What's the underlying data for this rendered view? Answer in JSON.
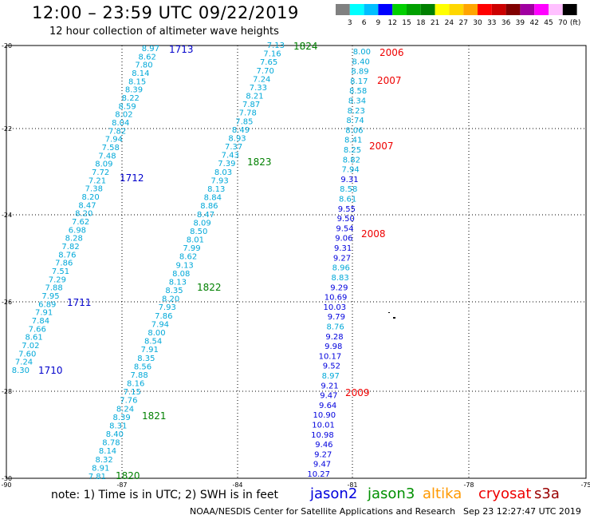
{
  "header": {
    "title": "12:00 – 23:59 UTC 09/22/2019",
    "subtitle": "12 hour collection of altimeter wave heights"
  },
  "legend": {
    "unit": "(ft)",
    "bins": [
      {
        "label": "3",
        "color": "#808080"
      },
      {
        "label": "6",
        "color": "#00ffff"
      },
      {
        "label": "9",
        "color": "#00bfff"
      },
      {
        "label": "12",
        "color": "#0000ff"
      },
      {
        "label": "15",
        "color": "#00d000"
      },
      {
        "label": "18",
        "color": "#00a000"
      },
      {
        "label": "21",
        "color": "#008000"
      },
      {
        "label": "24",
        "color": "#ffff00"
      },
      {
        "label": "27",
        "color": "#ffd700"
      },
      {
        "label": "30",
        "color": "#ffa500"
      },
      {
        "label": "33",
        "color": "#ff0000"
      },
      {
        "label": "36",
        "color": "#cc0000"
      },
      {
        "label": "39",
        "color": "#800000"
      },
      {
        "label": "42",
        "color": "#a000a0"
      },
      {
        "label": "45",
        "color": "#ff00ff"
      },
      {
        "label": "70",
        "color": "#ffc0ff"
      },
      {
        "label": "",
        "color": "#000000"
      }
    ]
  },
  "axes": {
    "lon_labels": [
      "-90",
      "-87",
      "-84",
      "-81",
      "-78",
      "-75"
    ],
    "lat_labels": [
      "-20",
      "-22",
      "-24",
      "-26",
      "-28",
      "-30"
    ]
  },
  "tracks": [
    {
      "name": "track-1710-1713",
      "color": "#00a8d8",
      "values": [
        "8.97",
        "8.62",
        "7.80",
        "8.14",
        "8.15",
        "8.39",
        "8.22",
        "8.59",
        "8.02",
        "8.04",
        "7.82",
        "7.94",
        "7.58",
        "7.48",
        "8.09",
        "7.72",
        "7.21",
        "7.38",
        "8.20",
        "8.47",
        "8.20",
        "7.62",
        "6.98",
        "8.28",
        "7.82",
        "8.76",
        "7.86",
        "7.51",
        "7.29",
        "7.88",
        "7.95",
        "6.89",
        "7.91",
        "7.84",
        "7.66",
        "8.61",
        "7.02",
        "7.60",
        "7.24",
        "8.30"
      ]
    },
    {
      "name": "track-1820-1824",
      "color": "#00a8d8",
      "values": [
        "7.13",
        "7.16",
        "7.65",
        "7.70",
        "7.24",
        "7.33",
        "8.21",
        "7.87",
        "7.78",
        "7.85",
        "8.49",
        "8.93",
        "7.37",
        "7.43",
        "7.39",
        "8.03",
        "7.93",
        "8.13",
        "8.84",
        "8.86",
        "8.47",
        "8.09",
        "8.50",
        "8.01",
        "7.99",
        "8.62",
        "9.13",
        "8.08",
        "8.13",
        "8.35",
        "8.20",
        "7.93",
        "7.86",
        "7.94",
        "8.00",
        "8.54",
        "7.91",
        "8.35",
        "8.56",
        "7.88",
        "8.16",
        "7.15",
        "7.76",
        "8.24",
        "8.39",
        "8.31",
        "8.40",
        "8.78",
        "8.14",
        "8.32",
        "8.91",
        "7.81"
      ]
    },
    {
      "name": "track-2006-2009",
      "values": [
        {
          "v": "8.00",
          "c": "#00a8d8"
        },
        {
          "v": "8.40",
          "c": "#00a8d8"
        },
        {
          "v": "8.89",
          "c": "#00a8d8"
        },
        {
          "v": "8.17",
          "c": "#00a8d8"
        },
        {
          "v": "8.58",
          "c": "#00a8d8"
        },
        {
          "v": "8.34",
          "c": "#00a8d8"
        },
        {
          "v": "8.23",
          "c": "#00a8d8"
        },
        {
          "v": "8.74",
          "c": "#00a8d8"
        },
        {
          "v": "8.06",
          "c": "#00a8d8"
        },
        {
          "v": "8.41",
          "c": "#00a8d8"
        },
        {
          "v": "8.25",
          "c": "#00a8d8"
        },
        {
          "v": "8.82",
          "c": "#00a8d8"
        },
        {
          "v": "7.94",
          "c": "#00a8d8"
        },
        {
          "v": "9.31",
          "c": "#0000dd"
        },
        {
          "v": "8.58",
          "c": "#00a8d8"
        },
        {
          "v": "8.61",
          "c": "#00a8d8"
        },
        {
          "v": "9.55",
          "c": "#0000dd"
        },
        {
          "v": "9.50",
          "c": "#0000dd"
        },
        {
          "v": "9.54",
          "c": "#0000dd"
        },
        {
          "v": "9.06",
          "c": "#0000dd"
        },
        {
          "v": "9.31",
          "c": "#0000dd"
        },
        {
          "v": "9.27",
          "c": "#0000dd"
        },
        {
          "v": "8.96",
          "c": "#00a8d8"
        },
        {
          "v": "8.83",
          "c": "#00a8d8"
        },
        {
          "v": "9.29",
          "c": "#0000dd"
        },
        {
          "v": "10.69",
          "c": "#0000dd"
        },
        {
          "v": "10.03",
          "c": "#0000dd"
        },
        {
          "v": "9.79",
          "c": "#0000dd"
        },
        {
          "v": "8.76",
          "c": "#00a8d8"
        },
        {
          "v": "9.28",
          "c": "#0000dd"
        },
        {
          "v": "9.98",
          "c": "#0000dd"
        },
        {
          "v": "10.17",
          "c": "#0000dd"
        },
        {
          "v": "9.52",
          "c": "#0000dd"
        },
        {
          "v": "8.97",
          "c": "#00a8d8"
        },
        {
          "v": "9.21",
          "c": "#0000dd"
        },
        {
          "v": "9.47",
          "c": "#0000dd"
        },
        {
          "v": "9.64",
          "c": "#0000dd"
        },
        {
          "v": "10.90",
          "c": "#0000dd"
        },
        {
          "v": "10.01",
          "c": "#0000dd"
        },
        {
          "v": "10.98",
          "c": "#0000dd"
        },
        {
          "v": "9.46",
          "c": "#0000dd"
        },
        {
          "v": "9.27",
          "c": "#0000dd"
        },
        {
          "v": "9.47",
          "c": "#0000dd"
        },
        {
          "v": "10.27",
          "c": "#0000dd"
        }
      ]
    }
  ],
  "time_labels": [
    {
      "text": "1713",
      "color": "#0000cc"
    },
    {
      "text": "1712",
      "color": "#0000cc"
    },
    {
      "text": "1711",
      "color": "#0000cc"
    },
    {
      "text": "1710",
      "color": "#0000cc"
    },
    {
      "text": "1824",
      "color": "#008000"
    },
    {
      "text": "1823",
      "color": "#008000"
    },
    {
      "text": "1822",
      "color": "#008000"
    },
    {
      "text": "1821",
      "color": "#008000"
    },
    {
      "text": "1820",
      "color": "#008000"
    },
    {
      "text": "2006",
      "color": "#ee0000"
    },
    {
      "text": "2007",
      "color": "#ee0000"
    },
    {
      "text": "2007",
      "color": "#ee0000"
    },
    {
      "text": "2008",
      "color": "#ee0000"
    },
    {
      "text": "2009",
      "color": "#ee0000"
    }
  ],
  "footer": {
    "note": "note: 1) Time is in UTC; 2) SWH is in feet",
    "satellites": [
      {
        "name": "jason2",
        "color": "#0000dd"
      },
      {
        "name": "jason3",
        "color": "#009000"
      },
      {
        "name": "altika",
        "color": "#ff9900"
      },
      {
        "name": "cryosat",
        "color": "#ee0000"
      },
      {
        "name": "s3a",
        "color": "#990000"
      }
    ],
    "credit": "NOAA/NESDIS Center for Satellite Applications and Research",
    "timestamp": "Sep 23 12:27:47 UTC 2019"
  }
}
